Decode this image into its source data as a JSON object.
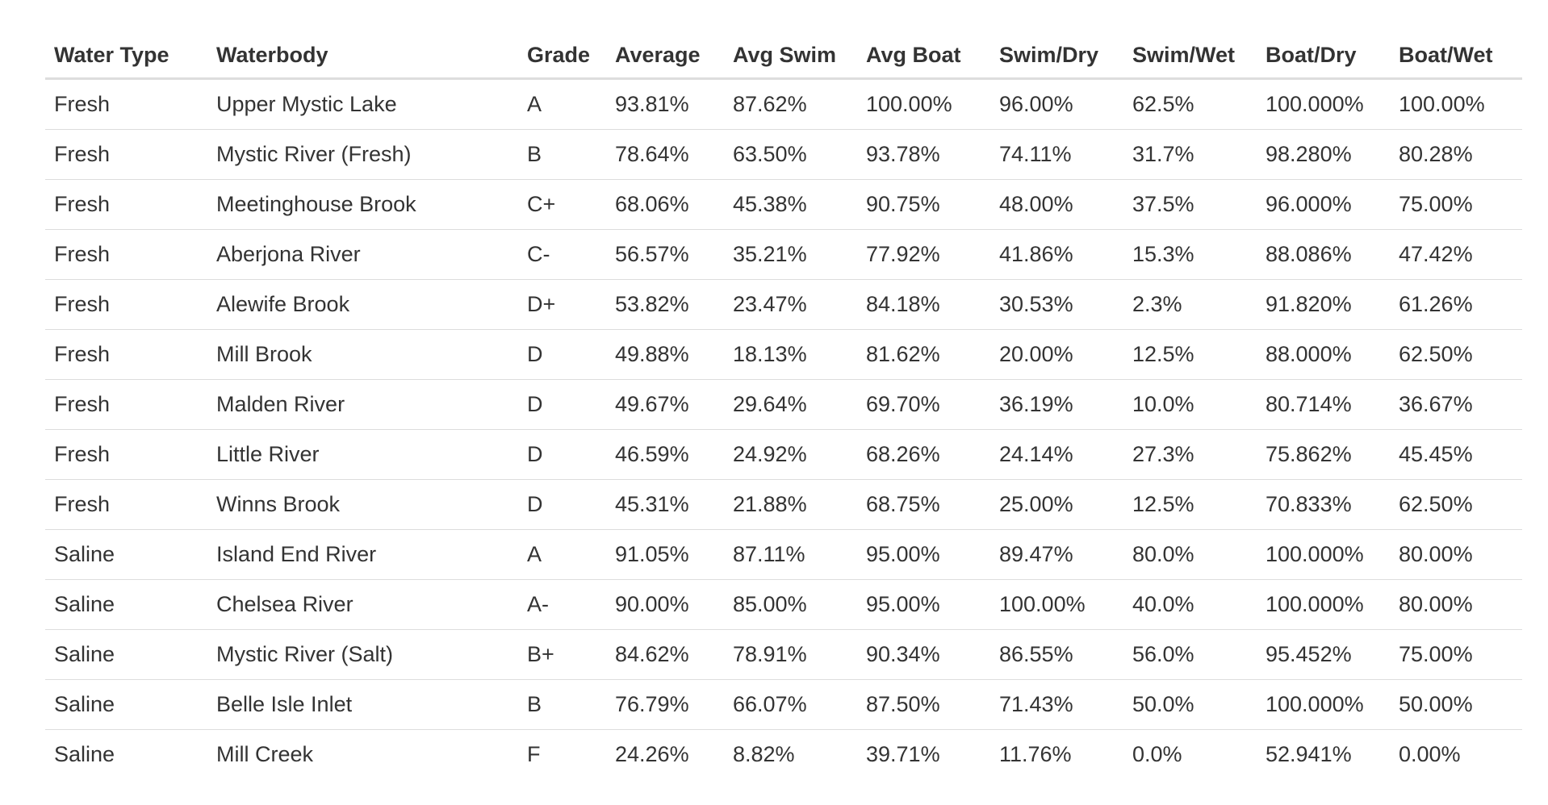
{
  "table": {
    "columns": [
      "Water Type",
      "Waterbody",
      "Grade",
      "Average",
      "Avg Swim",
      "Avg Boat",
      "Swim/Dry",
      "Swim/Wet",
      "Boat/Dry",
      "Boat/Wet"
    ],
    "rows": [
      [
        "Fresh",
        "Upper Mystic Lake",
        "A",
        "93.81%",
        "87.62%",
        "100.00%",
        "96.00%",
        "62.5%",
        "100.000%",
        "100.00%"
      ],
      [
        "Fresh",
        "Mystic River (Fresh)",
        "B",
        "78.64%",
        "63.50%",
        "93.78%",
        "74.11%",
        "31.7%",
        "98.280%",
        "80.28%"
      ],
      [
        "Fresh",
        "Meetinghouse Brook",
        "C+",
        "68.06%",
        "45.38%",
        "90.75%",
        "48.00%",
        "37.5%",
        "96.000%",
        "75.00%"
      ],
      [
        "Fresh",
        "Aberjona River",
        "C-",
        "56.57%",
        "35.21%",
        "77.92%",
        "41.86%",
        "15.3%",
        "88.086%",
        "47.42%"
      ],
      [
        "Fresh",
        "Alewife Brook",
        "D+",
        "53.82%",
        "23.47%",
        "84.18%",
        "30.53%",
        "2.3%",
        "91.820%",
        "61.26%"
      ],
      [
        "Fresh",
        "Mill Brook",
        "D",
        "49.88%",
        "18.13%",
        "81.62%",
        "20.00%",
        "12.5%",
        "88.000%",
        "62.50%"
      ],
      [
        "Fresh",
        "Malden River",
        "D",
        "49.67%",
        "29.64%",
        "69.70%",
        "36.19%",
        "10.0%",
        "80.714%",
        "36.67%"
      ],
      [
        "Fresh",
        "Little River",
        "D",
        "46.59%",
        "24.92%",
        "68.26%",
        "24.14%",
        "27.3%",
        "75.862%",
        "45.45%"
      ],
      [
        "Fresh",
        "Winns Brook",
        "D",
        "45.31%",
        "21.88%",
        "68.75%",
        "25.00%",
        "12.5%",
        "70.833%",
        "62.50%"
      ],
      [
        "Saline",
        "Island End River",
        "A",
        "91.05%",
        "87.11%",
        "95.00%",
        "89.47%",
        "80.0%",
        "100.000%",
        "80.00%"
      ],
      [
        "Saline",
        "Chelsea River",
        "A-",
        "90.00%",
        "85.00%",
        "95.00%",
        "100.00%",
        "40.0%",
        "100.000%",
        "80.00%"
      ],
      [
        "Saline",
        "Mystic River (Salt)",
        "B+",
        "84.62%",
        "78.91%",
        "90.34%",
        "86.55%",
        "56.0%",
        "95.452%",
        "75.00%"
      ],
      [
        "Saline",
        "Belle Isle Inlet",
        "B",
        "76.79%",
        "66.07%",
        "87.50%",
        "71.43%",
        "50.0%",
        "100.000%",
        "50.00%"
      ],
      [
        "Saline",
        "Mill Creek",
        "F",
        "24.26%",
        "8.82%",
        "39.71%",
        "11.76%",
        "0.0%",
        "52.941%",
        "0.00%"
      ]
    ]
  }
}
